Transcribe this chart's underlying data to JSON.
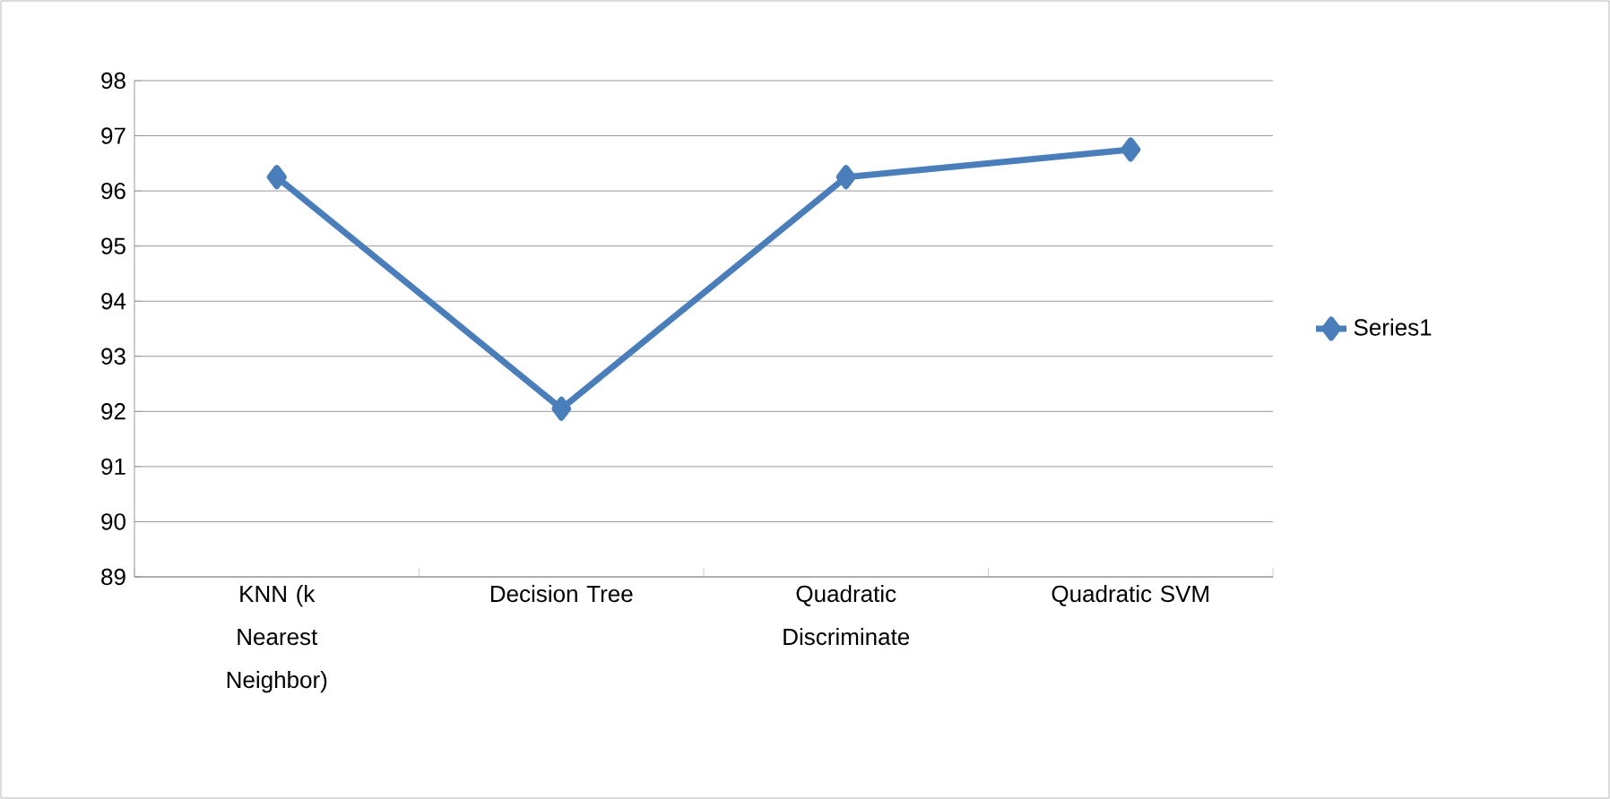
{
  "chart_data": {
    "type": "line",
    "categories": [
      "KNN (k Nearest Neighbor)",
      "Decision Tree",
      "Quadratic Discriminate",
      "Quadratic SVM"
    ],
    "series": [
      {
        "name": "Series1",
        "color": "#4a7ebb",
        "values": [
          96.25,
          92.05,
          96.25,
          96.75
        ]
      }
    ],
    "ylim": [
      89,
      98
    ],
    "yticks": [
      89,
      90,
      91,
      92,
      93,
      94,
      95,
      96,
      97,
      98
    ],
    "grid": "y",
    "legend": "right",
    "marker": "diamond",
    "line_style": "solid"
  }
}
